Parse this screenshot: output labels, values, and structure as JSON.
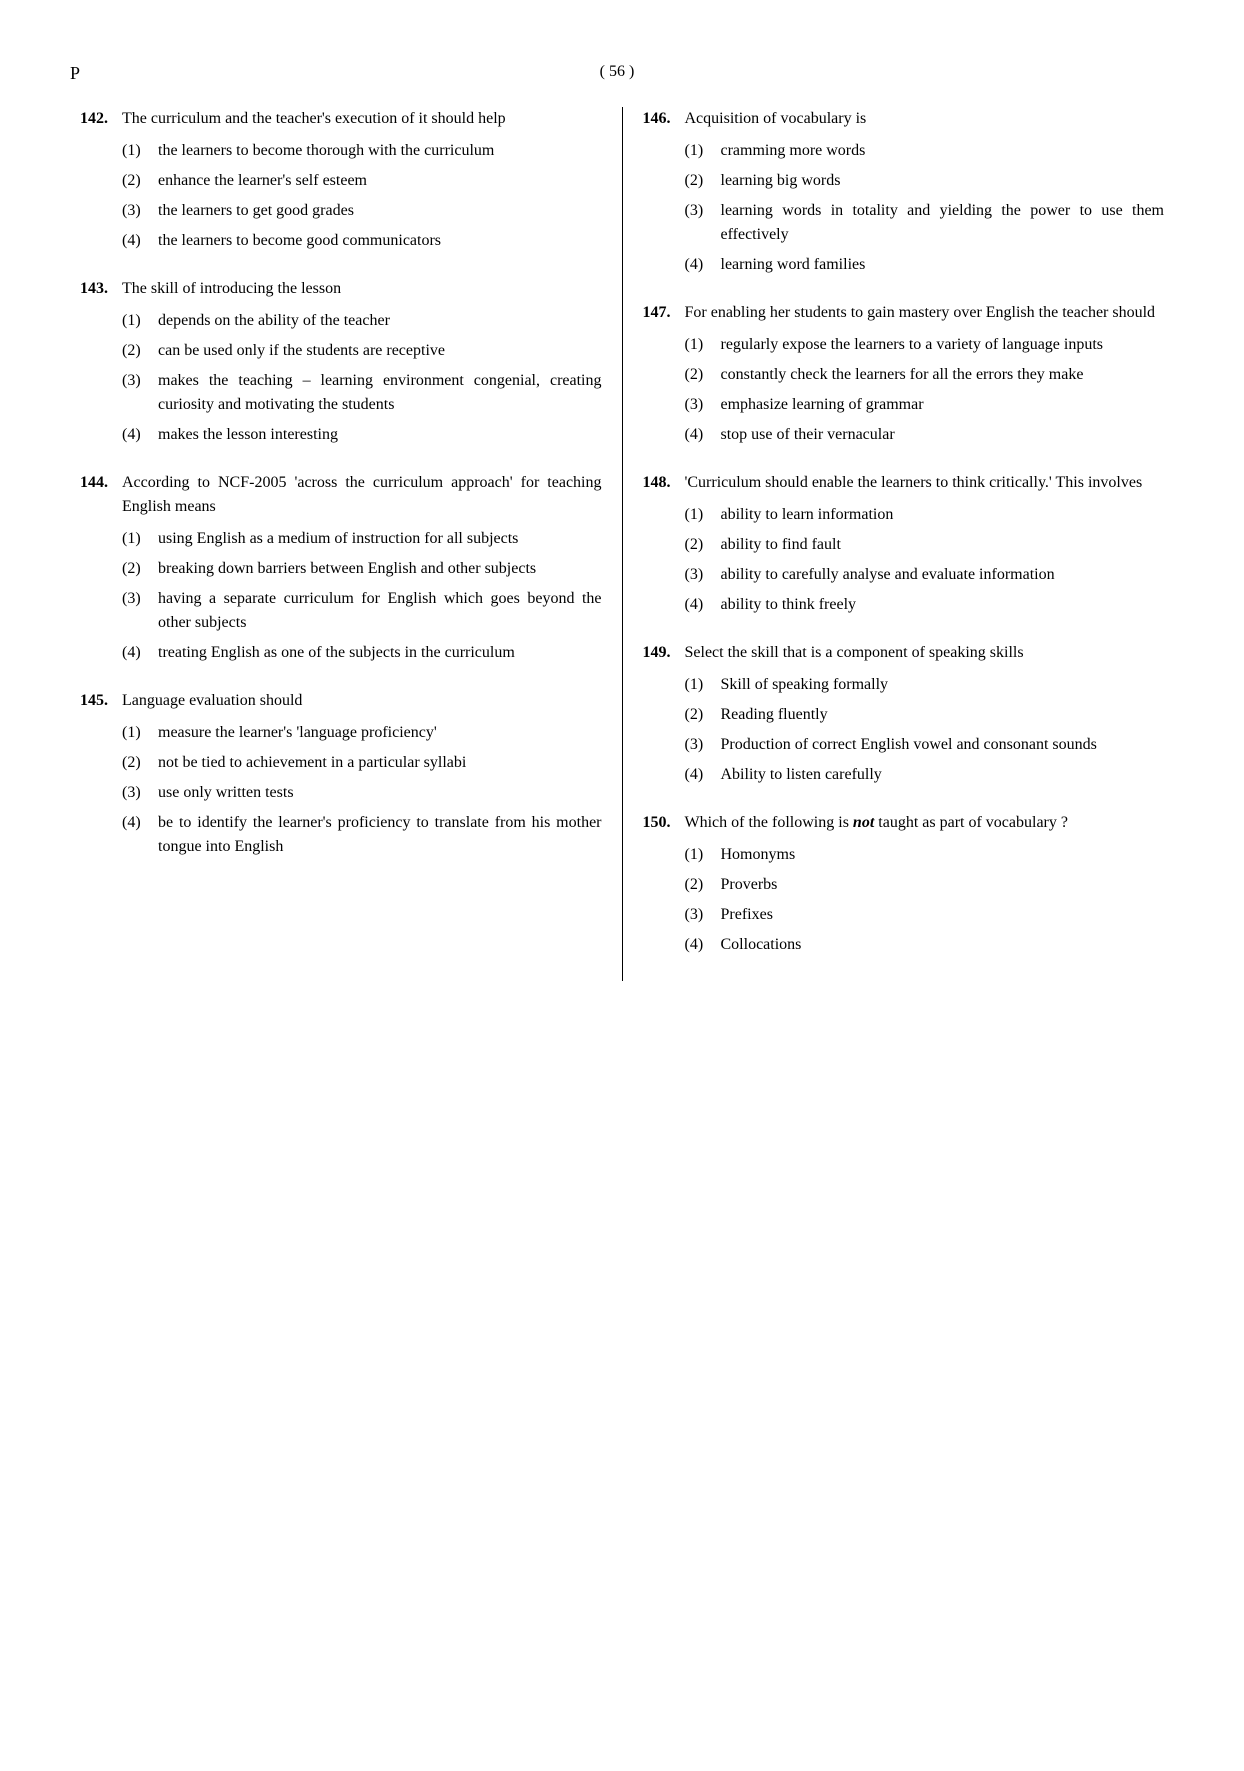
{
  "page_letter": "P",
  "page_number": "( 56 )",
  "left_questions": [
    {
      "num": "142.",
      "stem": "The curriculum and the teacher's execution of it should help",
      "options": [
        {
          "n": "(1)",
          "t": "the learners to become thorough with the curriculum"
        },
        {
          "n": "(2)",
          "t": "enhance the learner's self esteem"
        },
        {
          "n": "(3)",
          "t": "the learners to get good grades"
        },
        {
          "n": "(4)",
          "t": "the learners to become good communicators"
        }
      ]
    },
    {
      "num": "143.",
      "stem": "The skill of introducing the lesson",
      "options": [
        {
          "n": "(1)",
          "t": "depends on the ability of the teacher"
        },
        {
          "n": "(2)",
          "t": "can be used only if the students are receptive"
        },
        {
          "n": "(3)",
          "t": "makes the teaching – learning environment congenial, creating curiosity and motivating the students"
        },
        {
          "n": "(4)",
          "t": "makes the lesson interesting"
        }
      ]
    },
    {
      "num": "144.",
      "stem": "According to NCF-2005 'across the curriculum approach' for teaching English means",
      "options": [
        {
          "n": "(1)",
          "t": "using English as a medium of instruction for all subjects"
        },
        {
          "n": "(2)",
          "t": "breaking down barriers between English and other subjects"
        },
        {
          "n": "(3)",
          "t": "having a separate curriculum for English which goes beyond the other subjects"
        },
        {
          "n": "(4)",
          "t": "treating English as one of the subjects in the curriculum"
        }
      ]
    },
    {
      "num": "145.",
      "stem": "Language evaluation should",
      "options": [
        {
          "n": "(1)",
          "t": "measure the learner's 'language proficiency'"
        },
        {
          "n": "(2)",
          "t": "not be tied to achievement in a particular syllabi"
        },
        {
          "n": "(3)",
          "t": "use only written tests"
        },
        {
          "n": "(4)",
          "t": "be to identify the learner's proficiency to translate from his mother tongue into English"
        }
      ]
    }
  ],
  "right_questions": [
    {
      "num": "146.",
      "stem": "Acquisition of vocabulary is",
      "options": [
        {
          "n": "(1)",
          "t": "cramming more words"
        },
        {
          "n": "(2)",
          "t": "learning big words"
        },
        {
          "n": "(3)",
          "t": "learning words in totality and yielding the power to use them effectively"
        },
        {
          "n": "(4)",
          "t": "learning word families"
        }
      ]
    },
    {
      "num": "147.",
      "stem": "For enabling her students to gain mastery over English the teacher should",
      "options": [
        {
          "n": "(1)",
          "t": "regularly expose the learners to a variety of language inputs"
        },
        {
          "n": "(2)",
          "t": "constantly check the learners for all the errors they make"
        },
        {
          "n": "(3)",
          "t": "emphasize learning of grammar"
        },
        {
          "n": "(4)",
          "t": "stop use of their vernacular"
        }
      ]
    },
    {
      "num": "148.",
      "stem": "'Curriculum should enable the learners to think critically.' This involves",
      "options": [
        {
          "n": "(1)",
          "t": "ability to learn information"
        },
        {
          "n": "(2)",
          "t": "ability to find fault"
        },
        {
          "n": "(3)",
          "t": "ability to carefully analyse and evaluate information"
        },
        {
          "n": "(4)",
          "t": "ability to think freely"
        }
      ]
    },
    {
      "num": "149.",
      "stem": "Select the skill that is a component of speaking skills",
      "options": [
        {
          "n": "(1)",
          "t": "Skill of speaking formally"
        },
        {
          "n": "(2)",
          "t": "Reading fluently"
        },
        {
          "n": "(3)",
          "t": "Production of correct English vowel and consonant sounds"
        },
        {
          "n": "(4)",
          "t": "Ability to listen carefully"
        }
      ]
    },
    {
      "num": "150.",
      "stem_html": true,
      "stem": "Which of the following is <span class=\"italic\"><b>not</b></span> taught as part of vocabulary ?",
      "options": [
        {
          "n": "(1)",
          "t": "Homonyms"
        },
        {
          "n": "(2)",
          "t": "Proverbs"
        },
        {
          "n": "(3)",
          "t": "Prefixes"
        },
        {
          "n": "(4)",
          "t": "Collocations"
        }
      ]
    }
  ]
}
